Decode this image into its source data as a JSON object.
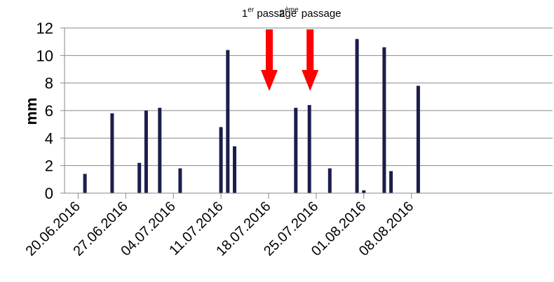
{
  "chart_data": {
    "type": "bar",
    "title": "",
    "xlabel": "",
    "ylabel": "mm",
    "ylim": [
      0,
      12
    ],
    "yticks": [
      0,
      2,
      4,
      6,
      8,
      10,
      12
    ],
    "grid": true,
    "bar_color": "#1b1e4b",
    "xtick_labels": [
      "20.06.2016",
      "27.06.2016",
      "04.07.2016",
      "11.07.2016",
      "18.07.2016",
      "25.07.2016",
      "01.08.2016",
      "08.08.2016"
    ],
    "x": [
      "21.06.2016",
      "25.06.2016",
      "29.06.2016",
      "30.06.2016",
      "02.07.2016",
      "05.07.2016",
      "11.07.2016",
      "12.07.2016",
      "13.07.2016",
      "22.07.2016",
      "24.07.2016",
      "27.07.2016",
      "31.07.2016",
      "01.08.2016",
      "04.08.2016",
      "05.08.2016",
      "09.08.2016"
    ],
    "values": [
      1.4,
      5.8,
      2.2,
      6.0,
      6.2,
      1.8,
      4.8,
      10.4,
      3.4,
      6.2,
      6.4,
      1.8,
      11.2,
      0.2,
      10.6,
      1.6,
      7.8
    ],
    "annotations": [
      {
        "label": "1",
        "sup": "er",
        "rest": " passage",
        "date": "18.07.2016",
        "arrow_color": "#ff0000"
      },
      {
        "label": "2",
        "sup": "ème",
        "rest": " passage",
        "date": "24.07.2016",
        "arrow_color": "#ff0000"
      }
    ]
  }
}
